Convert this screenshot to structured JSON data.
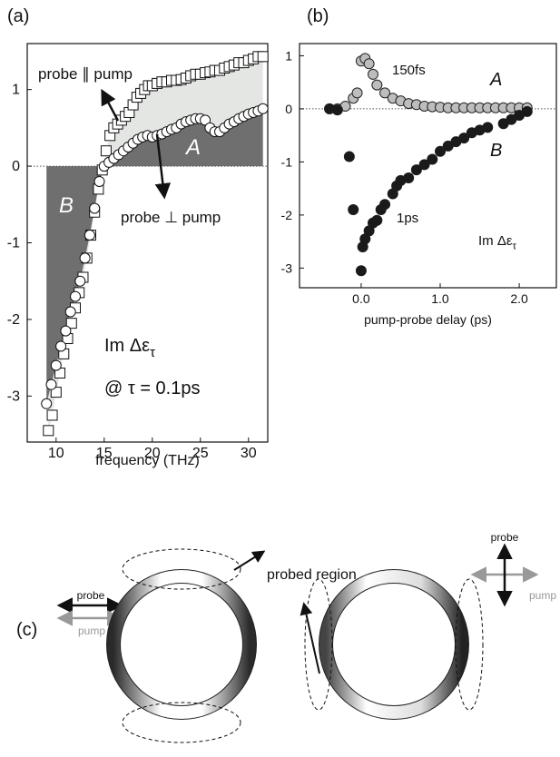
{
  "chart_data": [
    {
      "type": "scatter",
      "panel_label": "(a)",
      "x_label": "frequency  (THz)",
      "xlim": [
        7,
        32
      ],
      "ylim": [
        -3.6,
        1.6
      ],
      "xticks": [
        10,
        15,
        20,
        25,
        30
      ],
      "yticks": [
        -3,
        -2,
        -1,
        0,
        1
      ],
      "series": [
        {
          "name": "probe ∥ pump",
          "marker": "square",
          "color": "#ffffff",
          "edge_color": "#111111",
          "area_color": "#e4e6e4",
          "x": [
            9.2,
            9.6,
            10.0,
            10.4,
            10.8,
            11.2,
            11.6,
            12.0,
            12.4,
            12.8,
            13.2,
            13.6,
            14.0,
            14.4,
            14.8,
            15.2,
            15.6,
            16.0,
            16.4,
            16.8,
            17.2,
            17.6,
            18.0,
            18.4,
            18.8,
            19.2,
            19.6,
            20.0,
            20.5,
            21.0,
            21.5,
            22.0,
            22.5,
            23.0,
            23.5,
            24.0,
            24.5,
            25.0,
            25.5,
            26.0,
            26.5,
            27.0,
            27.5,
            28.0,
            28.5,
            29.0,
            29.5,
            30.0,
            30.5,
            31.0,
            31.5
          ],
          "values": [
            -3.45,
            -3.25,
            -2.95,
            -2.7,
            -2.45,
            -2.25,
            -2.05,
            -1.85,
            -1.65,
            -1.45,
            -1.2,
            -0.9,
            -0.6,
            -0.3,
            -0.05,
            0.2,
            0.4,
            0.5,
            0.55,
            0.6,
            0.65,
            0.7,
            0.8,
            0.9,
            0.95,
            1.0,
            1.05,
            1.05,
            1.08,
            1.1,
            1.1,
            1.12,
            1.12,
            1.13,
            1.15,
            1.18,
            1.2,
            1.2,
            1.22,
            1.23,
            1.25,
            1.25,
            1.28,
            1.3,
            1.32,
            1.35,
            1.35,
            1.38,
            1.4,
            1.43,
            1.43
          ]
        },
        {
          "name": "probe ⊥ pump",
          "marker": "circle",
          "color": "#ffffff",
          "edge_color": "#111111",
          "area_color": "#6f6f6f",
          "x": [
            9.0,
            9.5,
            10.0,
            10.5,
            11.0,
            11.5,
            12.0,
            12.5,
            13.0,
            13.5,
            14.0,
            14.5,
            15.0,
            15.5,
            16.0,
            16.5,
            17.0,
            17.5,
            18.0,
            18.5,
            19.0,
            19.5,
            20.0,
            20.5,
            21.0,
            21.5,
            22.0,
            22.5,
            23.0,
            23.5,
            24.0,
            24.5,
            25.0,
            25.5,
            26.0,
            26.5,
            27.0,
            27.5,
            28.0,
            28.5,
            29.0,
            29.5,
            30.0,
            30.5,
            31.0,
            31.5
          ],
          "values": [
            -3.1,
            -2.85,
            -2.6,
            -2.35,
            -2.15,
            -1.9,
            -1.7,
            -1.5,
            -1.2,
            -0.9,
            -0.55,
            -0.2,
            0.0,
            0.05,
            0.1,
            0.15,
            0.2,
            0.25,
            0.3,
            0.35,
            0.38,
            0.4,
            0.38,
            0.4,
            0.42,
            0.45,
            0.48,
            0.5,
            0.55,
            0.58,
            0.6,
            0.62,
            0.62,
            0.6,
            0.5,
            0.45,
            0.45,
            0.5,
            0.55,
            0.58,
            0.62,
            0.65,
            0.68,
            0.7,
            0.72,
            0.75
          ]
        }
      ],
      "annotations": [
        {
          "text": "A"
        },
        {
          "text": "B"
        },
        {
          "text": "Im Δε",
          "subscript": "τ"
        },
        {
          "text": "@ τ = 0.1ps"
        }
      ]
    },
    {
      "type": "scatter",
      "panel_label": "(b)",
      "x_label": "pump-probe delay  (ps)",
      "xlim": [
        -0.78,
        2.47
      ],
      "ylim": [
        -3.37,
        1.23
      ],
      "xticks": [
        {
          "value": 0,
          "label": "0.0"
        },
        {
          "value": 1,
          "label": "1.0"
        },
        {
          "value": 2,
          "label": "2.0"
        }
      ],
      "yticks": [
        1,
        0,
        -1,
        -2,
        -3
      ],
      "series": [
        {
          "name": "A",
          "marker": "circle",
          "color": "#bdbdbd",
          "edge_color": "#222222",
          "x": [
            -0.4,
            -0.3,
            -0.2,
            -0.1,
            -0.05,
            0.0,
            0.05,
            0.1,
            0.15,
            0.2,
            0.3,
            0.4,
            0.5,
            0.6,
            0.7,
            0.8,
            0.9,
            1.0,
            1.1,
            1.2,
            1.3,
            1.4,
            1.5,
            1.6,
            1.7,
            1.8,
            1.9,
            2.0,
            2.1
          ],
          "values": [
            0,
            0,
            0.05,
            0.2,
            0.3,
            0.9,
            0.95,
            0.85,
            0.65,
            0.45,
            0.3,
            0.2,
            0.15,
            0.1,
            0.08,
            0.05,
            0.04,
            0.03,
            0.02,
            0.02,
            0.02,
            0.02,
            0.02,
            0.02,
            0.02,
            0.02,
            0.02,
            0.02,
            0.02
          ]
        },
        {
          "name": "B",
          "marker": "circle",
          "color": "#1a1a1a",
          "edge_color": "#1a1a1a",
          "x": [
            -0.4,
            -0.3,
            -0.15,
            -0.1,
            0.0,
            0.02,
            0.05,
            0.1,
            0.15,
            0.2,
            0.25,
            0.3,
            0.4,
            0.45,
            0.5,
            0.6,
            0.7,
            0.8,
            0.9,
            1.0,
            1.1,
            1.2,
            1.3,
            1.4,
            1.5,
            1.6,
            1.8,
            1.9,
            2.0,
            2.1
          ],
          "values": [
            0,
            -0.02,
            -0.9,
            -1.9,
            -3.05,
            -2.6,
            -2.45,
            -2.3,
            -2.15,
            -2.1,
            -1.9,
            -1.8,
            -1.6,
            -1.45,
            -1.35,
            -1.3,
            -1.15,
            -1.05,
            -0.95,
            -0.8,
            -0.7,
            -0.62,
            -0.55,
            -0.45,
            -0.4,
            -0.35,
            -0.28,
            -0.2,
            -0.12,
            -0.05
          ]
        }
      ],
      "annotations": [
        {
          "text": "150fs"
        },
        {
          "text": "1ps"
        },
        {
          "text": "Im Δε",
          "subscript": "τ"
        }
      ]
    }
  ],
  "diagram": {
    "panel_label": "(c)",
    "left_legend": {
      "probe": "probe",
      "pump": "pump"
    },
    "callout": "probed region",
    "right_legend": {
      "probe": "probe",
      "pump": "pump"
    }
  }
}
